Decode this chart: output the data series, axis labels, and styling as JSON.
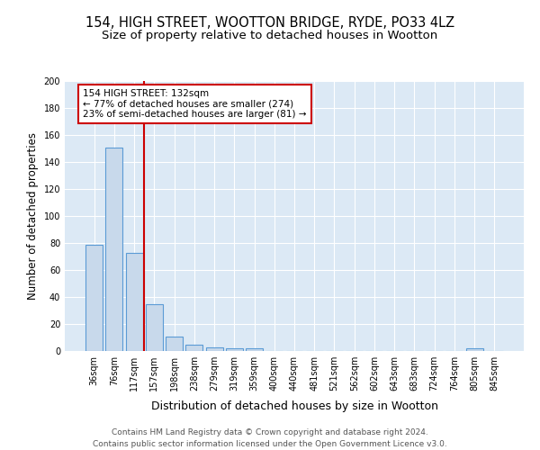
{
  "title1": "154, HIGH STREET, WOOTTON BRIDGE, RYDE, PO33 4LZ",
  "title2": "Size of property relative to detached houses in Wootton",
  "xlabel": "Distribution of detached houses by size in Wootton",
  "ylabel": "Number of detached properties",
  "bar_labels": [
    "36sqm",
    "76sqm",
    "117sqm",
    "157sqm",
    "198sqm",
    "238sqm",
    "279sqm",
    "319sqm",
    "359sqm",
    "400sqm",
    "440sqm",
    "481sqm",
    "521sqm",
    "562sqm",
    "602sqm",
    "643sqm",
    "683sqm",
    "724sqm",
    "764sqm",
    "805sqm",
    "845sqm"
  ],
  "bar_values": [
    79,
    151,
    73,
    35,
    11,
    5,
    3,
    2,
    2,
    0,
    0,
    0,
    0,
    0,
    0,
    0,
    0,
    0,
    0,
    2,
    0
  ],
  "bar_color": "#c8d9eb",
  "bar_edge_color": "#5b9bd5",
  "vline_index": 2.5,
  "vline_color": "#cc0000",
  "annotation_text": "154 HIGH STREET: 132sqm\n← 77% of detached houses are smaller (274)\n23% of semi-detached houses are larger (81) →",
  "annotation_box_edge_color": "#cc0000",
  "ylim": [
    0,
    200
  ],
  "yticks": [
    0,
    20,
    40,
    60,
    80,
    100,
    120,
    140,
    160,
    180,
    200
  ],
  "bg_color": "#dce9f5",
  "grid_color": "#ffffff",
  "footer": "Contains HM Land Registry data © Crown copyright and database right 2024.\nContains public sector information licensed under the Open Government Licence v3.0.",
  "title1_fontsize": 10.5,
  "title2_fontsize": 9.5,
  "ylabel_fontsize": 8.5,
  "xlabel_fontsize": 9,
  "footer_fontsize": 6.5,
  "tick_fontsize": 7,
  "annotation_fontsize": 7.5
}
